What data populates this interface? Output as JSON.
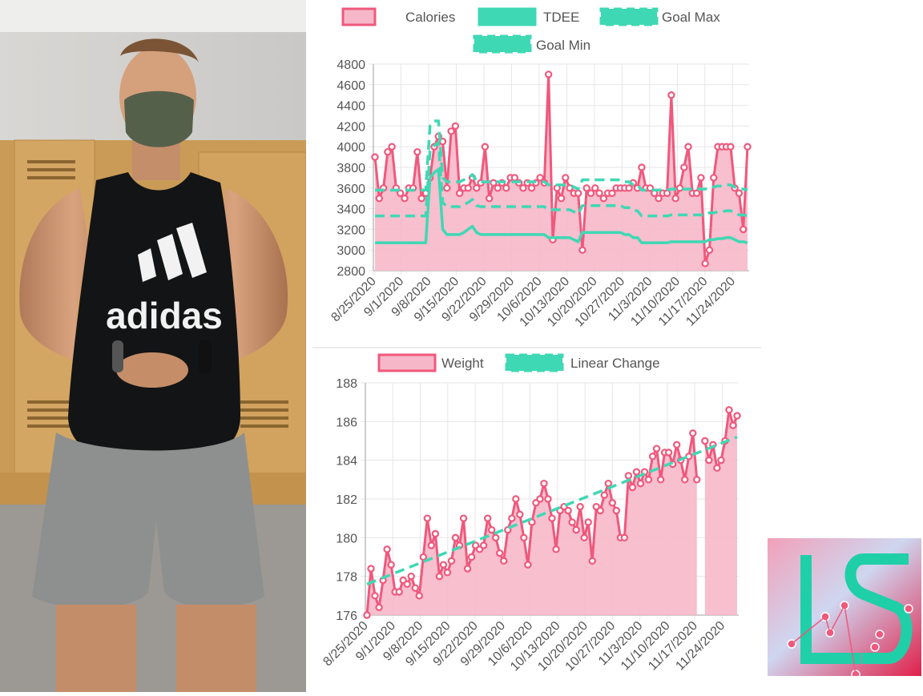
{
  "chart_data": [
    {
      "type": "line",
      "legend": [
        "Calories",
        "TDEE",
        "Goal Max",
        "Goal Min"
      ],
      "legend_position": "top",
      "ylim": [
        2800,
        4800
      ],
      "yticks": [
        "4800",
        "4600",
        "4400",
        "4200",
        "4000",
        "3800",
        "3600",
        "3400",
        "3200",
        "3000",
        "2800"
      ],
      "xticks": [
        "8/25/2020",
        "9/1/2020",
        "9/8/2020",
        "9/15/2020",
        "9/22/2020",
        "9/29/2020",
        "10/6/2020",
        "10/13/2020",
        "10/20/2020",
        "10/27/2020",
        "11/3/2020",
        "11/10/2020",
        "11/17/2020",
        "11/24/2020"
      ],
      "series": [
        {
          "name": "Calories",
          "style": "area",
          "color": "#f0587c",
          "values": [
            3900,
            3500,
            3600,
            3950,
            4000,
            3600,
            3550,
            3500,
            3600,
            3600,
            3950,
            3500,
            3550,
            3700,
            4000,
            4100,
            4050,
            3600,
            4150,
            4200,
            3550,
            3600,
            3600,
            3700,
            3600,
            3650,
            4000,
            3500,
            3650,
            3600,
            3650,
            3600,
            3700,
            3700,
            3650,
            3600,
            3650,
            3600,
            3650,
            3700,
            3650,
            4700,
            3100,
            3600,
            3500,
            3700,
            3600,
            3550,
            3550,
            3000,
            3600,
            3550,
            3600,
            3550,
            3500,
            3550,
            3550,
            3600,
            3600,
            3600,
            3600,
            3650,
            3600,
            3800,
            3600,
            3600,
            3550,
            3500,
            3550,
            3550,
            4500,
            3500,
            3600,
            3800,
            4000,
            3550,
            3550,
            3700,
            2870,
            3000,
            3700,
            4000,
            4000,
            4000,
            4000,
            3600,
            3550,
            3200,
            4000
          ]
        },
        {
          "name": "TDEE",
          "style": "solid",
          "color": "#3fd8b4",
          "values": [
            3070,
            3070,
            3070,
            3070,
            3070,
            3070,
            3070,
            3070,
            3070,
            3070,
            3070,
            3070,
            3070,
            3700,
            3750,
            3780,
            3200,
            3150,
            3150,
            3150,
            3150,
            3170,
            3200,
            3230,
            3170,
            3150,
            3150,
            3150,
            3150,
            3150,
            3150,
            3150,
            3150,
            3150,
            3150,
            3150,
            3150,
            3150,
            3150,
            3150,
            3150,
            3120,
            3120,
            3120,
            3120,
            3120,
            3120,
            3100,
            3080,
            3170,
            3170,
            3170,
            3170,
            3170,
            3170,
            3170,
            3170,
            3170,
            3170,
            3150,
            3150,
            3120,
            3120,
            3070,
            3070,
            3070,
            3070,
            3070,
            3070,
            3070,
            3080,
            3080,
            3080,
            3080,
            3080,
            3080,
            3080,
            3080,
            3080,
            3100,
            3100,
            3110,
            3110,
            3120,
            3120,
            3100,
            3080,
            3080,
            3070
          ]
        },
        {
          "name": "Goal Max",
          "style": "dashed",
          "color": "#3fd8b4",
          "values": [
            3580,
            3580,
            3580,
            3580,
            3580,
            3580,
            3580,
            3580,
            3580,
            3580,
            3580,
            3580,
            3580,
            4200,
            4250,
            4250,
            3700,
            3660,
            3660,
            3660,
            3660,
            3680,
            3700,
            3730,
            3670,
            3660,
            3660,
            3660,
            3660,
            3660,
            3660,
            3660,
            3660,
            3660,
            3660,
            3660,
            3660,
            3660,
            3660,
            3660,
            3660,
            3630,
            3630,
            3630,
            3630,
            3630,
            3630,
            3610,
            3590,
            3680,
            3680,
            3680,
            3680,
            3680,
            3680,
            3680,
            3680,
            3680,
            3680,
            3660,
            3660,
            3630,
            3630,
            3580,
            3580,
            3580,
            3580,
            3580,
            3580,
            3580,
            3590,
            3590,
            3590,
            3590,
            3590,
            3590,
            3590,
            3590,
            3590,
            3610,
            3610,
            3620,
            3620,
            3630,
            3630,
            3610,
            3590,
            3590,
            3580
          ]
        },
        {
          "name": "Goal Min",
          "style": "dashed",
          "color": "#3fd8b4",
          "values": [
            3330,
            3330,
            3330,
            3330,
            3330,
            3330,
            3330,
            3330,
            3330,
            3330,
            3330,
            3330,
            3330,
            3960,
            4010,
            4040,
            3460,
            3420,
            3420,
            3420,
            3420,
            3440,
            3460,
            3490,
            3430,
            3420,
            3420,
            3420,
            3420,
            3420,
            3420,
            3420,
            3420,
            3420,
            3420,
            3420,
            3420,
            3420,
            3420,
            3420,
            3420,
            3390,
            3390,
            3390,
            3390,
            3390,
            3390,
            3370,
            3350,
            3430,
            3430,
            3430,
            3430,
            3430,
            3430,
            3430,
            3430,
            3430,
            3430,
            3410,
            3410,
            3380,
            3380,
            3330,
            3330,
            3330,
            3330,
            3330,
            3330,
            3330,
            3340,
            3340,
            3340,
            3340,
            3340,
            3340,
            3340,
            3340,
            3340,
            3360,
            3360,
            3370,
            3370,
            3380,
            3380,
            3360,
            3340,
            3340,
            3330
          ]
        }
      ]
    },
    {
      "type": "line",
      "legend": [
        "Weight",
        "Linear Change"
      ],
      "legend_position": "top",
      "ylim": [
        176,
        188
      ],
      "yticks": [
        "188",
        "186",
        "184",
        "182",
        "180",
        "178",
        "176"
      ],
      "xticks": [
        "8/25/2020",
        "9/1/2020",
        "9/8/2020",
        "9/15/2020",
        "9/22/2020",
        "9/29/2020",
        "10/6/2020",
        "10/13/2020",
        "10/20/2020",
        "10/27/2020",
        "11/3/2020",
        "11/10/2020",
        "11/17/2020",
        "11/24/2020"
      ],
      "series": [
        {
          "name": "Weight",
          "style": "area",
          "color": "#f0587c",
          "values": [
            176.0,
            178.4,
            177.0,
            176.4,
            177.8,
            179.4,
            178.6,
            177.2,
            177.2,
            177.8,
            177.6,
            178.0,
            177.4,
            177.0,
            179.0,
            181.0,
            179.6,
            180.2,
            178.0,
            178.6,
            178.2,
            178.8,
            180.0,
            179.6,
            181.0,
            178.4,
            179.0,
            179.6,
            179.4,
            179.6,
            181.0,
            180.4,
            180.0,
            179.2,
            178.8,
            180.4,
            181.0,
            182.0,
            181.2,
            180.0,
            178.6,
            180.8,
            181.8,
            182.0,
            182.8,
            182.0,
            181.0,
            179.4,
            181.4,
            181.6,
            181.4,
            180.8,
            180.4,
            181.6,
            180.0,
            180.8,
            178.8,
            181.6,
            181.4,
            182.2,
            182.8,
            181.8,
            181.4,
            180.0,
            180.0,
            183.2,
            182.6,
            183.4,
            182.8,
            183.4,
            183.0,
            184.2,
            184.6,
            183.0,
            184.4,
            184.4,
            183.8,
            184.8,
            184.0,
            183.0,
            184.2,
            185.4,
            183.0,
            null,
            185.0,
            184.0,
            184.8,
            183.6,
            184.0,
            185.0,
            186.6,
            185.8,
            186.3
          ]
        },
        {
          "name": "Linear Change",
          "style": "dashed",
          "color": "#3fd8b4",
          "values": [
            177.6,
            185.2
          ]
        }
      ]
    }
  ],
  "logo": {
    "text": "LS"
  }
}
